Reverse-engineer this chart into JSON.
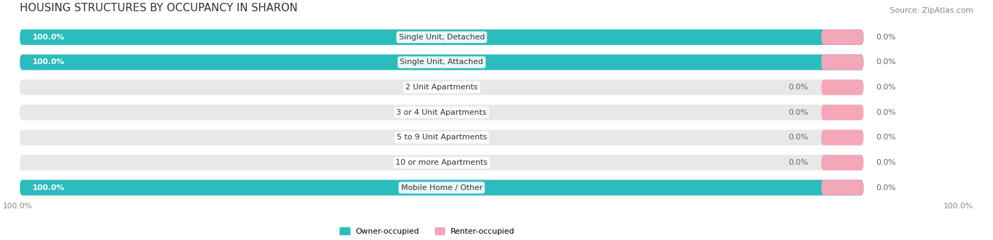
{
  "title": "HOUSING STRUCTURES BY OCCUPANCY IN SHARON",
  "source": "Source: ZipAtlas.com",
  "categories": [
    "Single Unit, Detached",
    "Single Unit, Attached",
    "2 Unit Apartments",
    "3 or 4 Unit Apartments",
    "5 to 9 Unit Apartments",
    "10 or more Apartments",
    "Mobile Home / Other"
  ],
  "owner_pct": [
    100.0,
    100.0,
    0.0,
    0.0,
    0.0,
    0.0,
    100.0
  ],
  "renter_pct": [
    0.0,
    0.0,
    0.0,
    0.0,
    0.0,
    0.0,
    0.0
  ],
  "owner_color": "#2BBCBD",
  "renter_color": "#F4A7B9",
  "bg_color": "#F0F0F0",
  "bar_bg_color": "#E8E8E8",
  "title_fontsize": 11,
  "source_fontsize": 8,
  "label_fontsize": 8,
  "category_fontsize": 8,
  "axis_label_fontsize": 8,
  "legend_fontsize": 8
}
